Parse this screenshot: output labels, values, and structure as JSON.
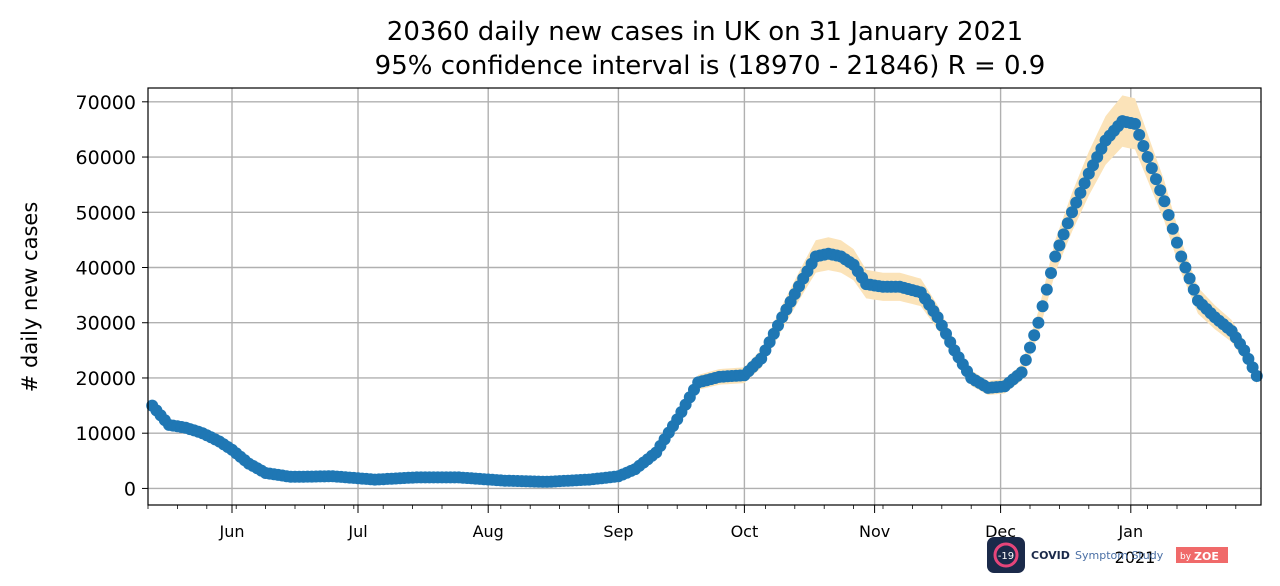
{
  "chart_data": {
    "type": "scatter",
    "title": "20360 daily new cases in UK on 31 January 2021",
    "subtitle": "95% confidence interval is (18970 - 21846) R = 0.9",
    "xlabel": "",
    "ylabel": "# daily new cases",
    "xlim": [
      "2020-05-12",
      "2021-02-01"
    ],
    "ylim": [
      -3000,
      72500
    ],
    "grid": true,
    "yticks": [
      0,
      10000,
      20000,
      30000,
      40000,
      50000,
      60000,
      70000
    ],
    "ytick_labels": [
      "0",
      "10000",
      "20000",
      "30000",
      "40000",
      "50000",
      "60000",
      "70000"
    ],
    "xticks": [
      {
        "date": "2020-06-01",
        "label": "Jun"
      },
      {
        "date": "2020-07-01",
        "label": "Jul"
      },
      {
        "date": "2020-08-01",
        "label": "Aug"
      },
      {
        "date": "2020-09-01",
        "label": "Sep"
      },
      {
        "date": "2020-10-01",
        "label": "Oct"
      },
      {
        "date": "2020-11-01",
        "label": "Nov"
      },
      {
        "date": "2020-12-01",
        "label": "Dec"
      },
      {
        "date": "2021-01-01",
        "label": "Jan"
      }
    ],
    "x_offset_label": "2021",
    "colors": {
      "points": "#1f77b4",
      "band": "#fbe3b9",
      "grid": "#b0b0b0"
    },
    "series": [
      {
        "name": "",
        "x": [
          "2020-05-13",
          "2020-05-17",
          "2020-05-21",
          "2020-05-25",
          "2020-05-29",
          "2020-06-01",
          "2020-06-05",
          "2020-06-09",
          "2020-06-15",
          "2020-06-25",
          "2020-07-05",
          "2020-07-15",
          "2020-07-25",
          "2020-08-05",
          "2020-08-15",
          "2020-08-25",
          "2020-09-01",
          "2020-09-05",
          "2020-09-10",
          "2020-09-15",
          "2020-09-20",
          "2020-09-25",
          "2020-10-01",
          "2020-10-05",
          "2020-10-10",
          "2020-10-15",
          "2020-10-18",
          "2020-10-21",
          "2020-10-24",
          "2020-10-27",
          "2020-10-30",
          "2020-11-03",
          "2020-11-07",
          "2020-11-12",
          "2020-11-16",
          "2020-11-20",
          "2020-11-24",
          "2020-11-28",
          "2020-12-02",
          "2020-12-06",
          "2020-12-10",
          "2020-12-14",
          "2020-12-18",
          "2020-12-22",
          "2020-12-26",
          "2020-12-30",
          "2021-01-02",
          "2021-01-05",
          "2021-01-09",
          "2021-01-13",
          "2021-01-17",
          "2021-01-21",
          "2021-01-25",
          "2021-01-28",
          "2021-01-31"
        ],
        "y": [
          15000,
          11500,
          11000,
          10000,
          8500,
          7000,
          4500,
          2800,
          2100,
          2200,
          1600,
          2000,
          2000,
          1400,
          1200,
          1600,
          2200,
          3500,
          6500,
          12500,
          19200,
          20200,
          20500,
          23500,
          31000,
          38000,
          42000,
          42500,
          42000,
          40500,
          37000,
          36500,
          36500,
          35500,
          31000,
          25000,
          20000,
          18200,
          18500,
          21000,
          30000,
          42000,
          50000,
          57000,
          63000,
          66500,
          66000,
          60000,
          52000,
          42000,
          34000,
          31000,
          28500,
          25000,
          20360
        ]
      }
    ]
  },
  "logo": {
    "badge": "-19",
    "text_bold": "COVID",
    "text_light": "Symptom Study",
    "by": "by",
    "zoe": "ZOE"
  }
}
